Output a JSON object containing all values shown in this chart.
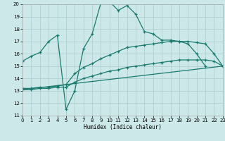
{
  "xlabel": "Humidex (Indice chaleur)",
  "xlim": [
    0,
    23
  ],
  "ylim": [
    11,
    20
  ],
  "xticks": [
    0,
    1,
    2,
    3,
    4,
    5,
    6,
    7,
    8,
    9,
    10,
    11,
    12,
    13,
    14,
    15,
    16,
    17,
    18,
    19,
    20,
    21,
    22,
    23
  ],
  "yticks": [
    11,
    12,
    13,
    14,
    15,
    16,
    17,
    18,
    19,
    20
  ],
  "bg_color": "#cce8e8",
  "grid_color": "#aacccc",
  "line_color": "#1a7a6e",
  "series": [
    {
      "x": [
        0,
        1,
        2,
        3,
        4,
        5,
        6,
        7,
        8,
        9,
        10,
        11,
        12,
        13,
        14,
        15,
        16,
        17,
        18,
        19,
        20,
        21
      ],
      "y": [
        15.4,
        15.8,
        16.1,
        17.0,
        17.5,
        11.5,
        13.0,
        16.4,
        17.6,
        20.1,
        20.2,
        19.5,
        19.9,
        19.2,
        17.8,
        17.6,
        17.1,
        17.1,
        17.0,
        16.8,
        16.0,
        15.0
      ]
    },
    {
      "x": [
        0,
        1,
        2,
        3,
        4,
        5,
        6,
        7,
        8,
        9,
        10,
        11,
        12,
        13,
        14,
        15,
        16,
        17,
        18,
        19,
        20,
        21,
        22,
        23
      ],
      "y": [
        13.2,
        13.2,
        13.3,
        13.3,
        13.4,
        13.5,
        14.4,
        14.9,
        15.2,
        15.6,
        15.9,
        16.2,
        16.5,
        16.6,
        16.7,
        16.8,
        16.9,
        17.0,
        17.0,
        17.0,
        16.9,
        16.8,
        16.0,
        15.0
      ]
    },
    {
      "x": [
        0,
        1,
        2,
        3,
        4,
        5,
        6,
        7,
        8,
        9,
        10,
        11,
        12,
        13,
        14,
        15,
        16,
        17,
        18,
        19,
        20,
        21,
        22,
        23
      ],
      "y": [
        13.1,
        13.1,
        13.2,
        13.2,
        13.3,
        13.3,
        13.7,
        14.0,
        14.2,
        14.4,
        14.6,
        14.7,
        14.9,
        15.0,
        15.1,
        15.2,
        15.3,
        15.4,
        15.5,
        15.5,
        15.5,
        15.5,
        15.4,
        15.0
      ]
    },
    {
      "x": [
        0,
        23
      ],
      "y": [
        13.1,
        15.0
      ]
    }
  ],
  "font_family": "monospace"
}
